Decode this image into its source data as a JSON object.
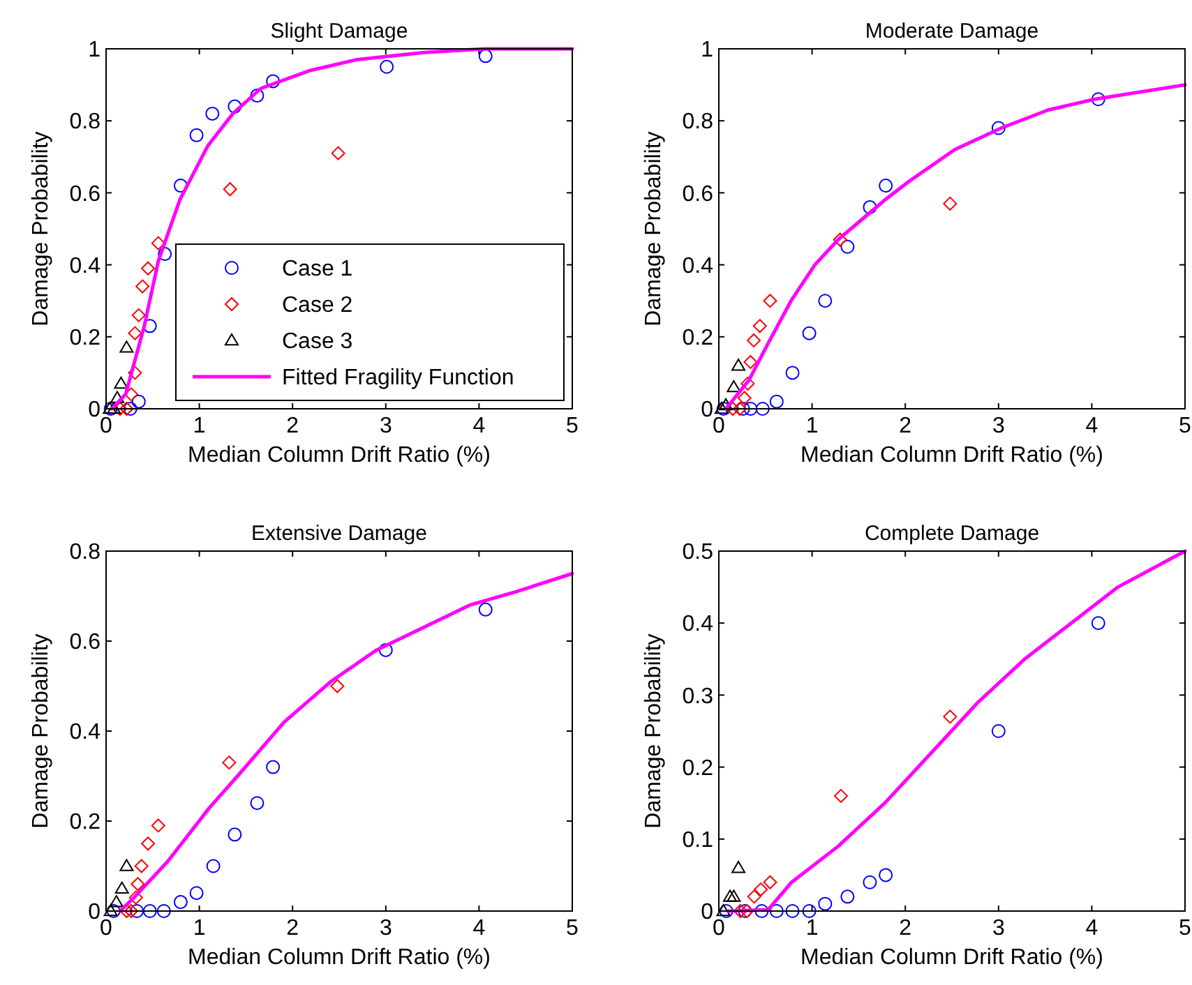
{
  "chart_data": [
    {
      "type": "scatter",
      "title": "Slight Damage",
      "xlabel": "Median Column Drift Ratio (%)",
      "ylabel": "Damage Probability",
      "xlim": [
        0,
        5
      ],
      "ylim": [
        0,
        1
      ],
      "xticks": [
        0,
        1,
        2,
        3,
        4,
        5
      ],
      "yticks": [
        0,
        0.2,
        0.4,
        0.6,
        0.8,
        1
      ],
      "grid": false,
      "legend": "bottom right",
      "series": [
        {
          "name": "Case 1",
          "color": "#0000ff",
          "marker": "circle",
          "x": [
            0.05,
            0.26,
            0.35,
            0.47,
            0.63,
            0.8,
            0.97,
            1.14,
            1.38,
            1.62,
            1.79,
            3.01,
            4.07
          ],
          "values": [
            0,
            0,
            0.02,
            0.23,
            0.43,
            0.62,
            0.76,
            0.82,
            0.84,
            0.87,
            0.91,
            0.95,
            0.98
          ]
        },
        {
          "name": "Case 2",
          "color": "#ff0000",
          "marker": "diamond",
          "x": [
            0.15,
            0.22,
            0.27,
            0.31,
            0.31,
            0.35,
            0.39,
            0.45,
            0.56,
            1.33,
            2.49
          ],
          "values": [
            0,
            0,
            0.04,
            0.1,
            0.21,
            0.26,
            0.34,
            0.39,
            0.46,
            0.61,
            0.71
          ]
        },
        {
          "name": "Case 3",
          "color": "#000000",
          "marker": "triangle",
          "x": [
            0.04,
            0.085,
            0.12,
            0.16,
            0.22
          ],
          "values": [
            0,
            0,
            0.03,
            0.07,
            0.17
          ]
        },
        {
          "name": "Fitted Fragility Function",
          "type": "line",
          "color": "#ff00ff",
          "marker": "none",
          "x": [
            0.06,
            0.21,
            0.41,
            0.56,
            0.79,
            1.09,
            1.36,
            1.66,
            2.19,
            2.69,
            3.41,
            4.06,
            5
          ],
          "values": [
            0,
            0.04,
            0.23,
            0.41,
            0.58,
            0.73,
            0.82,
            0.89,
            0.94,
            0.97,
            0.99,
            1,
            1
          ]
        }
      ]
    },
    {
      "type": "scatter",
      "title": "Moderate Damage",
      "xlabel": "Median Column Drift Ratio (%)",
      "ylabel": "Damage Probability",
      "xlim": [
        0,
        5
      ],
      "ylim": [
        0,
        1
      ],
      "xticks": [
        0,
        1,
        2,
        3,
        4,
        5
      ],
      "yticks": [
        0,
        0.2,
        0.4,
        0.6,
        0.8,
        1
      ],
      "grid": false,
      "legend": false,
      "series": [
        {
          "color": "#0000ff",
          "marker": "circle",
          "x": [
            0.05,
            0.26,
            0.34,
            0.47,
            0.62,
            0.79,
            0.97,
            1.14,
            1.38,
            1.62,
            1.79,
            3.0,
            4.07
          ],
          "values": [
            0,
            0,
            0,
            0,
            0.02,
            0.1,
            0.21,
            0.3,
            0.45,
            0.56,
            0.62,
            0.78,
            0.86
          ]
        },
        {
          "color": "#ff0000",
          "marker": "diamond",
          "x": [
            0.15,
            0.225,
            0.275,
            0.31,
            0.34,
            0.375,
            0.44,
            0.55,
            1.3,
            2.48
          ],
          "values": [
            0,
            0,
            0.03,
            0.07,
            0.13,
            0.19,
            0.23,
            0.3,
            0.47,
            0.57
          ]
        },
        {
          "color": "#000000",
          "marker": "triangle",
          "x": [
            0.03,
            0.075,
            0.16,
            0.21
          ],
          "values": [
            0,
            0.01,
            0.06,
            0.12
          ]
        },
        {
          "type": "line",
          "color": "#ff00ff",
          "marker": "none",
          "x": [
            0.075,
            0.325,
            0.525,
            0.775,
            1.03,
            1.28,
            1.78,
            2.03,
            2.53,
            3.03,
            3.53,
            4.03,
            5
          ],
          "values": [
            0,
            0.08,
            0.18,
            0.3,
            0.4,
            0.47,
            0.58,
            0.63,
            0.72,
            0.78,
            0.83,
            0.86,
            0.9
          ]
        }
      ]
    },
    {
      "type": "scatter",
      "title": "Extensive Damage",
      "xlabel": "Median Column Drift Ratio (%)",
      "ylabel": "Damage Probability",
      "xlim": [
        0,
        5
      ],
      "ylim": [
        0,
        0.8
      ],
      "xticks": [
        0,
        1,
        2,
        3,
        4,
        5
      ],
      "yticks": [
        0,
        0.2,
        0.4,
        0.6,
        0.8
      ],
      "grid": false,
      "legend": false,
      "series": [
        {
          "color": "#0000ff",
          "marker": "circle",
          "x": [
            0.08,
            0.33,
            0.47,
            0.62,
            0.8,
            0.97,
            1.15,
            1.38,
            1.62,
            1.79,
            3.0,
            4.07
          ],
          "values": [
            0,
            0,
            0,
            0,
            0.02,
            0.04,
            0.1,
            0.17,
            0.24,
            0.32,
            0.58,
            0.67
          ]
        },
        {
          "color": "#ff0000",
          "marker": "diamond",
          "x": [
            0.22,
            0.27,
            0.32,
            0.34,
            0.38,
            0.45,
            0.56,
            1.32,
            2.48
          ],
          "values": [
            0,
            0,
            0.03,
            0.06,
            0.1,
            0.15,
            0.19,
            0.33,
            0.5
          ]
        },
        {
          "color": "#000000",
          "marker": "triangle",
          "x": [
            0.05,
            0.11,
            0.17,
            0.22
          ],
          "values": [
            0,
            0.02,
            0.05,
            0.1
          ]
        },
        {
          "type": "line",
          "color": "#ff00ff",
          "marker": "none",
          "x": [
            0.15,
            0.3,
            0.66,
            1.11,
            1.41,
            1.91,
            2.41,
            2.9,
            3.4,
            3.9,
            4.4,
            5
          ],
          "values": [
            0,
            0.03,
            0.11,
            0.23,
            0.3,
            0.42,
            0.51,
            0.58,
            0.63,
            0.68,
            0.71,
            0.75
          ]
        }
      ]
    },
    {
      "type": "scatter",
      "title": "Complete Damage",
      "xlabel": "Median Column Drift Ratio (%)",
      "ylabel": "Damage Probability",
      "xlim": [
        0,
        5
      ],
      "ylim": [
        0,
        0.5
      ],
      "xticks": [
        0,
        1,
        2,
        3,
        4,
        5
      ],
      "yticks": [
        0,
        0.1,
        0.2,
        0.3,
        0.4,
        0.5
      ],
      "grid": false,
      "legend": false,
      "series": [
        {
          "color": "#0000ff",
          "marker": "circle",
          "x": [
            0.08,
            0.28,
            0.46,
            0.62,
            0.79,
            0.97,
            1.14,
            1.38,
            1.62,
            1.79,
            3.0,
            4.07
          ],
          "values": [
            0,
            0,
            0,
            0,
            0,
            0,
            0.01,
            0.02,
            0.04,
            0.05,
            0.25,
            0.4
          ]
        },
        {
          "color": "#ff0000",
          "marker": "diamond",
          "x": [
            0.23,
            0.3,
            0.38,
            0.45,
            0.55,
            1.31,
            2.48
          ],
          "values": [
            0,
            0,
            0.02,
            0.03,
            0.04,
            0.16,
            0.27
          ]
        },
        {
          "color": "#000000",
          "marker": "triangle",
          "x": [
            0.05,
            0.12,
            0.16,
            0.21
          ],
          "values": [
            0,
            0.02,
            0.02,
            0.06
          ]
        },
        {
          "type": "line",
          "color": "#ff00ff",
          "marker": "none",
          "x": [
            0.1,
            0.53,
            0.78,
            1.28,
            1.78,
            2.28,
            2.78,
            3.28,
            3.78,
            4.28,
            5
          ],
          "values": [
            0,
            0.002,
            0.04,
            0.09,
            0.15,
            0.22,
            0.29,
            0.35,
            0.4,
            0.45,
            0.5
          ]
        }
      ]
    }
  ]
}
